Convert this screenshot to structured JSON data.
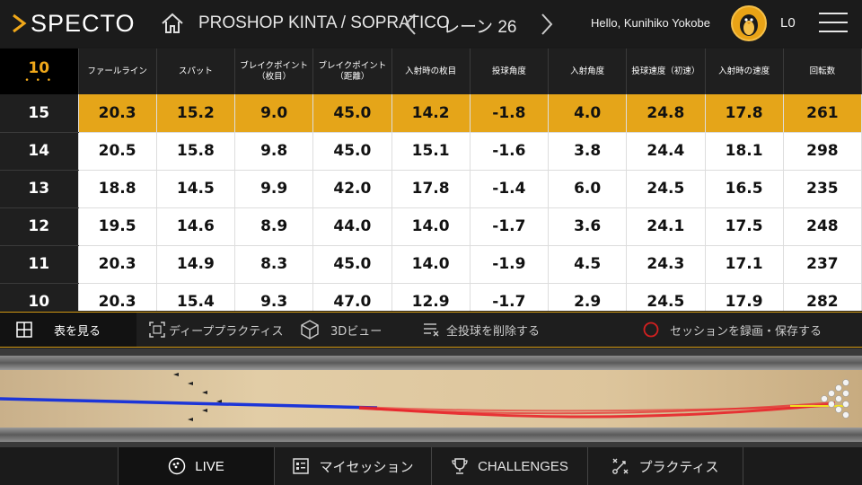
{
  "header": {
    "logo_text": "SPECTO",
    "venue": "PROSHOP KINTA / SOPRATICO",
    "lane": "レーン 26",
    "greeting": "Hello, Kunihiko Yokobe",
    "level": "L0"
  },
  "table": {
    "game_number": "10",
    "game_dots": "• • •",
    "headers": [
      {
        "line1": "ファールライン",
        "line2": ""
      },
      {
        "line1": "スパット",
        "line2": ""
      },
      {
        "line1": "ブレイクポイント",
        "line2": "（枚目）"
      },
      {
        "line1": "ブレイクポイント",
        "line2": "（距離）"
      },
      {
        "line1": "入射時の枚目",
        "line2": ""
      },
      {
        "line1": "投球角度",
        "line2": ""
      },
      {
        "line1": "入射角度",
        "line2": ""
      },
      {
        "line1": "投球速度（初速）",
        "line2": ""
      },
      {
        "line1": "入射時の速度",
        "line2": ""
      },
      {
        "line1": "回転数",
        "line2": ""
      }
    ],
    "rows": [
      {
        "frame": "15",
        "selected": true,
        "values": [
          "20.3",
          "15.2",
          "9.0",
          "45.0",
          "14.2",
          "-1.8",
          "4.0",
          "24.8",
          "17.8",
          "261"
        ]
      },
      {
        "frame": "14",
        "selected": false,
        "values": [
          "20.5",
          "15.8",
          "9.8",
          "45.0",
          "15.1",
          "-1.6",
          "3.8",
          "24.4",
          "18.1",
          "298"
        ]
      },
      {
        "frame": "13",
        "selected": false,
        "values": [
          "18.8",
          "14.5",
          "9.9",
          "42.0",
          "17.8",
          "-1.4",
          "6.0",
          "24.5",
          "16.5",
          "235"
        ]
      },
      {
        "frame": "12",
        "selected": false,
        "values": [
          "19.5",
          "14.6",
          "8.9",
          "44.0",
          "14.0",
          "-1.7",
          "3.6",
          "24.1",
          "17.5",
          "248"
        ]
      },
      {
        "frame": "11",
        "selected": false,
        "values": [
          "20.3",
          "14.9",
          "8.3",
          "45.0",
          "14.0",
          "-1.9",
          "4.5",
          "24.3",
          "17.1",
          "237"
        ]
      },
      {
        "frame": "10",
        "selected": false,
        "values": [
          "20.3",
          "15.4",
          "9.3",
          "47.0",
          "12.9",
          "-1.7",
          "2.9",
          "24.5",
          "17.9",
          "282"
        ]
      }
    ]
  },
  "toolbar": {
    "view_table": "表を見る",
    "deep_practice": "ディーププラクティス",
    "view_3d": "3Dビュー",
    "delete_all": "全投球を削除する",
    "record_save": "セッションを録画・保存する"
  },
  "nav": {
    "live": "LIVE",
    "my_session": "マイセッション",
    "challenges": "CHALLENGES",
    "practice": "プラクティス"
  },
  "colors": {
    "accent": "#e5a519",
    "record": "#d32020",
    "track_blue": "#1c35d8",
    "track_red": "#e8242a"
  }
}
